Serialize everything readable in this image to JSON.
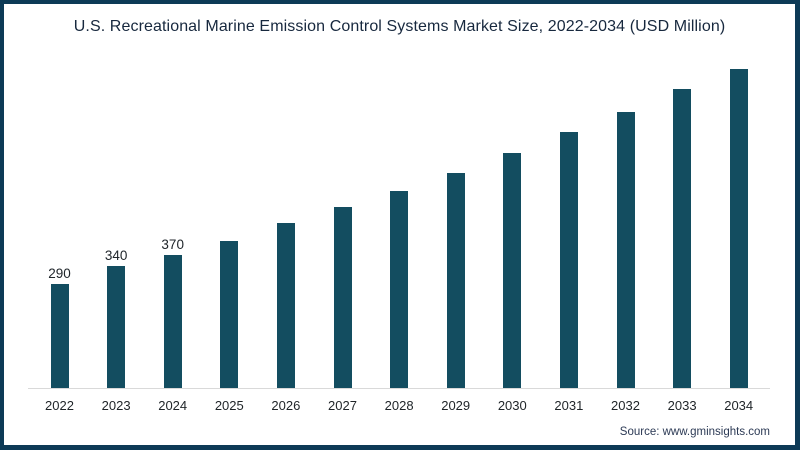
{
  "chart_data": {
    "type": "bar",
    "title": "U.S. Recreational Marine Emission Control Systems Market Size, 2022-2034 (USD Million)",
    "categories": [
      "2022",
      "2023",
      "2024",
      "2025",
      "2026",
      "2027",
      "2028",
      "2029",
      "2030",
      "2031",
      "2032",
      "2033",
      "2034"
    ],
    "values": [
      290,
      340,
      370,
      410,
      460,
      505,
      550,
      600,
      655,
      715,
      770,
      835,
      890
    ],
    "value_labels": [
      "290",
      "340",
      "370",
      "",
      "",
      "",
      "",
      "",
      "",
      "",
      "",
      "",
      ""
    ],
    "xlabel": "",
    "ylabel": "",
    "ylim": [
      0,
      950
    ],
    "grid": false,
    "legend": false,
    "axis_line": "x-axis only, light gray"
  },
  "source": {
    "label": "Source: www.gminsights.com"
  },
  "colors": {
    "bar": "#134d60",
    "frame": "#0d3a56",
    "title_text": "#17283e",
    "tick_text": "#1f2428",
    "value_text": "#20262b",
    "axis_line": "#d9d9d9",
    "source_text": "#2c3a55"
  }
}
